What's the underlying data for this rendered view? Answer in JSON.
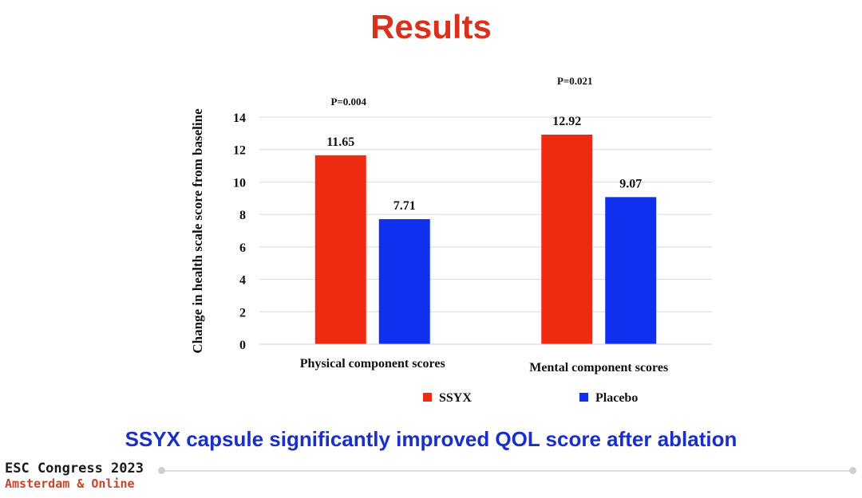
{
  "slide": {
    "title": "Results",
    "conclusion": "SSYX capsule significantly improved QOL score after ablation",
    "footer_line1": "ESC Congress 2023",
    "footer_line2": "Amsterdam & Online"
  },
  "colors": {
    "title": "#d9311c",
    "ssyx": "#ee2a10",
    "placebo": "#1030f0",
    "conclusion": "#1a2fc7"
  },
  "chart_data": {
    "type": "bar",
    "title": "",
    "xlabel": "",
    "ylabel": "Change in health scale score from baseline",
    "ylim": [
      0,
      14
    ],
    "yticks": [
      0,
      2,
      4,
      6,
      8,
      10,
      12,
      14
    ],
    "grid": true,
    "legend_position": "bottom",
    "categories": [
      "Physical  component scores",
      "Mental component scores"
    ],
    "series": [
      {
        "name": "SSYX",
        "values": [
          11.65,
          12.92
        ],
        "color": "#ee2a10"
      },
      {
        "name": "Placebo",
        "values": [
          7.71,
          9.07
        ],
        "color": "#1030f0"
      }
    ],
    "value_labels": [
      [
        "11.65",
        "12.92"
      ],
      [
        "7.71",
        "9.07"
      ]
    ],
    "annotations": [
      "P=0.004",
      "P=0.021"
    ]
  }
}
